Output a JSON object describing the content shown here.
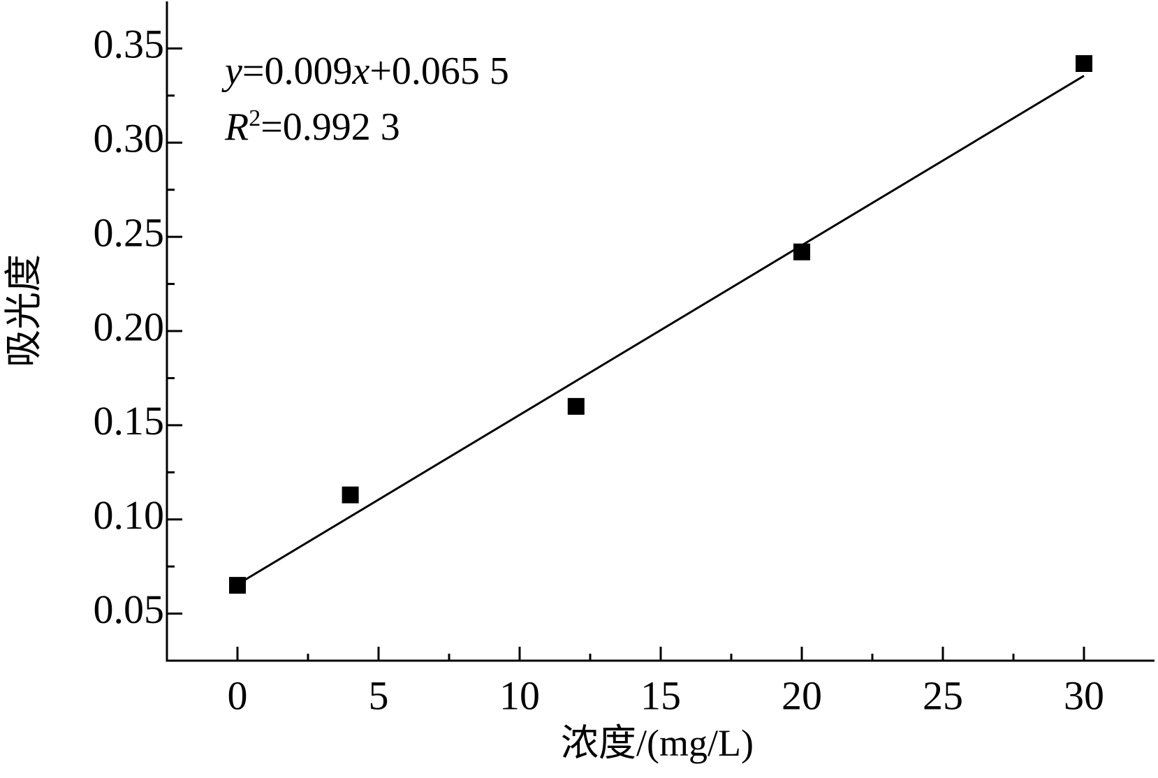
{
  "chart_data": {
    "type": "scatter",
    "x_label": "浓度/(mg/L)",
    "y_label": "吸光度",
    "x": [
      0,
      4,
      12,
      20,
      30
    ],
    "values": [
      0.065,
      0.113,
      0.16,
      0.242,
      0.342
    ],
    "color": "#000000",
    "fit_line": {
      "x": [
        0,
        30
      ],
      "values": [
        0.0655,
        0.3355
      ]
    },
    "equation": [
      "y",
      "=0.009",
      "x",
      "+0.065 5"
    ],
    "r_squared": [
      "R",
      "2",
      "=0.992 3"
    ],
    "xlim": [
      -2.5,
      32.5
    ],
    "ylim": [
      0.025,
      0.375
    ],
    "xticks": [
      0,
      5,
      10,
      15,
      20,
      25,
      30
    ],
    "xminorticks": [
      2.5,
      7.5,
      12.5,
      17.5,
      22.5,
      27.5
    ],
    "yticks": [
      {
        "value": 0.05,
        "label": "0.05"
      },
      {
        "value": 0.1,
        "label": "0.10"
      },
      {
        "value": 0.15,
        "label": "0.15"
      },
      {
        "value": 0.2,
        "label": "0.20"
      },
      {
        "value": 0.25,
        "label": "0.25"
      },
      {
        "value": 0.3,
        "label": "0.30"
      },
      {
        "value": 0.35,
        "label": "0.35"
      }
    ],
    "yminorticks": [
      0.075,
      0.125,
      0.175,
      0.225,
      0.275,
      0.325
    ],
    "grid": false
  }
}
